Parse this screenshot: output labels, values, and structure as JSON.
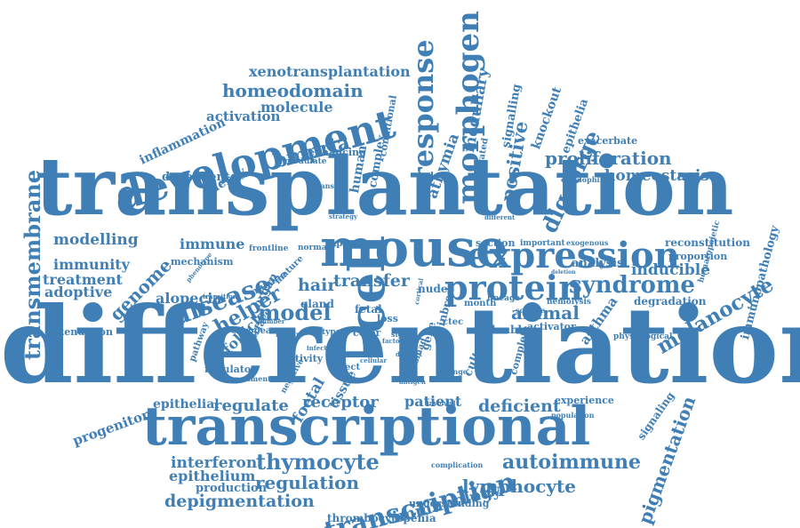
{
  "palette": {
    "word": "#3f7fb5",
    "background": "#ffffff"
  },
  "words": [
    {
      "text": "differentiation"
    },
    {
      "text": "transplantation"
    },
    {
      "text": "transcriptional"
    },
    {
      "text": "mouse"
    },
    {
      "text": "development"
    },
    {
      "text": "expression"
    },
    {
      "text": "cell"
    },
    {
      "text": "protein"
    },
    {
      "text": "morphogen"
    },
    {
      "text": "response"
    },
    {
      "text": "transmembrane"
    },
    {
      "text": "syndrome"
    },
    {
      "text": "disease"
    },
    {
      "text": "transcription"
    },
    {
      "text": "thymocyte"
    },
    {
      "text": "autoimmune"
    },
    {
      "text": "lymphocyte"
    },
    {
      "text": "regulation"
    },
    {
      "text": "interferon"
    },
    {
      "text": "depigmentation"
    },
    {
      "text": "immunology"
    },
    {
      "text": "pigmentation"
    },
    {
      "text": "melanocyte"
    },
    {
      "text": "proliferation"
    },
    {
      "text": "homeostasis"
    },
    {
      "text": "homeodomain"
    },
    {
      "text": "xenotransplantation"
    },
    {
      "text": "bmpria"
    },
    {
      "text": "model"
    },
    {
      "text": "helper"
    },
    {
      "text": "genome"
    },
    {
      "text": "hair"
    },
    {
      "text": "transfer"
    },
    {
      "text": "animal"
    },
    {
      "text": "inducible"
    },
    {
      "text": "digeorge"
    },
    {
      "text": "positive"
    },
    {
      "text": "medullary"
    },
    {
      "text": "athymia"
    },
    {
      "text": "modelling"
    },
    {
      "text": "immune"
    },
    {
      "text": "immunity"
    },
    {
      "text": "treatment"
    },
    {
      "text": "adoptive"
    },
    {
      "text": "alopecia"
    },
    {
      "text": "follicle"
    },
    {
      "text": "activation"
    },
    {
      "text": "molecule"
    },
    {
      "text": "inflammation"
    },
    {
      "text": "allergy"
    },
    {
      "text": "dependent"
    },
    {
      "text": "human"
    },
    {
      "text": "complex"
    },
    {
      "text": "signalling"
    },
    {
      "text": "knockout"
    },
    {
      "text": "epithelia"
    },
    {
      "text": "exacerbate"
    },
    {
      "text": "reconstitution"
    },
    {
      "text": "proportion"
    },
    {
      "text": "immunopathology"
    },
    {
      "text": "analysis"
    },
    {
      "text": "degradation"
    },
    {
      "text": "asthma"
    },
    {
      "text": "section"
    },
    {
      "text": "nude"
    },
    {
      "text": "culture"
    },
    {
      "text": "deficient"
    },
    {
      "text": "receptor"
    },
    {
      "text": "patient"
    },
    {
      "text": "regulate"
    },
    {
      "text": "epithelial"
    },
    {
      "text": "progenitor"
    },
    {
      "text": "epithelium"
    },
    {
      "text": "production"
    },
    {
      "text": "experience"
    },
    {
      "text": "signaling"
    },
    {
      "text": "foetal"
    },
    {
      "text": "tissue"
    },
    {
      "text": "thrombocytopenia"
    },
    {
      "text": "understanding"
    },
    {
      "text": "attenuation"
    },
    {
      "text": "mechanism"
    },
    {
      "text": "frontline"
    },
    {
      "text": "european"
    },
    {
      "text": "regulator"
    },
    {
      "text": "activity"
    },
    {
      "text": "organ"
    },
    {
      "text": "gland"
    },
    {
      "text": "fetal"
    },
    {
      "text": "loss"
    },
    {
      "text": "color"
    },
    {
      "text": "gene"
    },
    {
      "text": "inbred"
    },
    {
      "text": "double"
    },
    {
      "text": "activator"
    },
    {
      "text": "physiological"
    },
    {
      "text": "complete"
    },
    {
      "text": "ctec"
    },
    {
      "text": "smad"
    },
    {
      "text": "direct"
    },
    {
      "text": "murine"
    },
    {
      "text": "mature"
    },
    {
      "text": "explant"
    },
    {
      "text": "normal"
    },
    {
      "text": "important"
    },
    {
      "text": "exogenous"
    },
    {
      "text": "enhancing"
    },
    {
      "text": "modulate"
    },
    {
      "text": "expansion"
    },
    {
      "text": "conditional"
    },
    {
      "text": "activated"
    },
    {
      "text": "eosinophil"
    },
    {
      "text": "surface"
    },
    {
      "text": "pathway"
    },
    {
      "text": "type"
    },
    {
      "text": "experiment"
    },
    {
      "text": "negative"
    },
    {
      "text": "range"
    },
    {
      "text": "month"
    },
    {
      "text": "lineage"
    },
    {
      "text": "science"
    },
    {
      "text": "hemolysis"
    },
    {
      "text": "population"
    },
    {
      "text": "complication"
    },
    {
      "text": "family"
    },
    {
      "text": "strategy"
    },
    {
      "text": "different"
    },
    {
      "text": "transition"
    },
    {
      "text": "phenotype"
    },
    {
      "text": "hematopoietic"
    },
    {
      "text": "signal"
    },
    {
      "text": "number"
    },
    {
      "text": "deletion"
    },
    {
      "text": "involved"
    },
    {
      "text": "infection"
    },
    {
      "text": "cortical"
    },
    {
      "text": "factor"
    },
    {
      "text": "cellular"
    },
    {
      "text": "distinct"
    },
    {
      "text": "antigen"
    }
  ]
}
